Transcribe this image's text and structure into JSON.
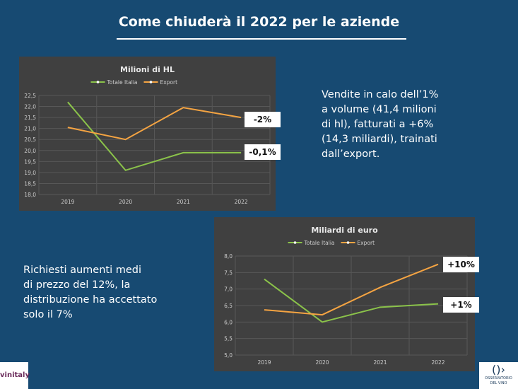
{
  "header": {
    "title": "Come chiuderà il 2022 per le aziende"
  },
  "text_right": [
    "Vendite in calo dell’1%",
    "a volume (41,4 milioni",
    "di hl), fatturati a +6%",
    "(14,3 miliardi), trainati",
    "dall’export."
  ],
  "text_left": [
    "Richiesti aumenti medi",
    "di prezzo del 12%, la",
    "distribuzione ha accettato",
    "solo il 7%"
  ],
  "colors": {
    "background": "#174a72",
    "totale": "#8bc34a",
    "export": "#f5a442",
    "chart_bg": "#404040"
  },
  "chart_data": [
    {
      "type": "line",
      "title": "Milioni di HL",
      "categories": [
        "2019",
        "2020",
        "2021",
        "2022"
      ],
      "yticks": [
        "22,5",
        "22,0",
        "21,5",
        "21,0",
        "20,5",
        "20,0",
        "19,5",
        "19,0",
        "18,5",
        "18,0"
      ],
      "ylim": [
        18.0,
        22.5
      ],
      "grid": true,
      "legend": "top",
      "series": [
        {
          "name": "Totale Italia",
          "values": [
            22.2,
            19.1,
            19.9,
            19.9
          ]
        },
        {
          "name": "Export",
          "values": [
            21.05,
            20.5,
            21.95,
            21.5
          ]
        }
      ],
      "annotations": [
        "-2%",
        "-0,1%"
      ]
    },
    {
      "type": "line",
      "title": "Miliardi di euro",
      "categories": [
        "2019",
        "2020",
        "2021",
        "2022"
      ],
      "yticks": [
        "8,0",
        "7,5",
        "7,0",
        "6,5",
        "6,0",
        "5,5",
        "5,0"
      ],
      "ylim": [
        5.0,
        8.0
      ],
      "grid": true,
      "legend": "top",
      "series": [
        {
          "name": "Totale Italia",
          "values": [
            7.3,
            6.0,
            6.45,
            6.55
          ]
        },
        {
          "name": "Export",
          "values": [
            6.37,
            6.22,
            7.05,
            7.75
          ]
        }
      ],
      "annotations": [
        "+10%",
        "+1%"
      ]
    }
  ],
  "logos": {
    "left": "vinitaly",
    "right": "OSSERVATORIO DEL VINO"
  }
}
